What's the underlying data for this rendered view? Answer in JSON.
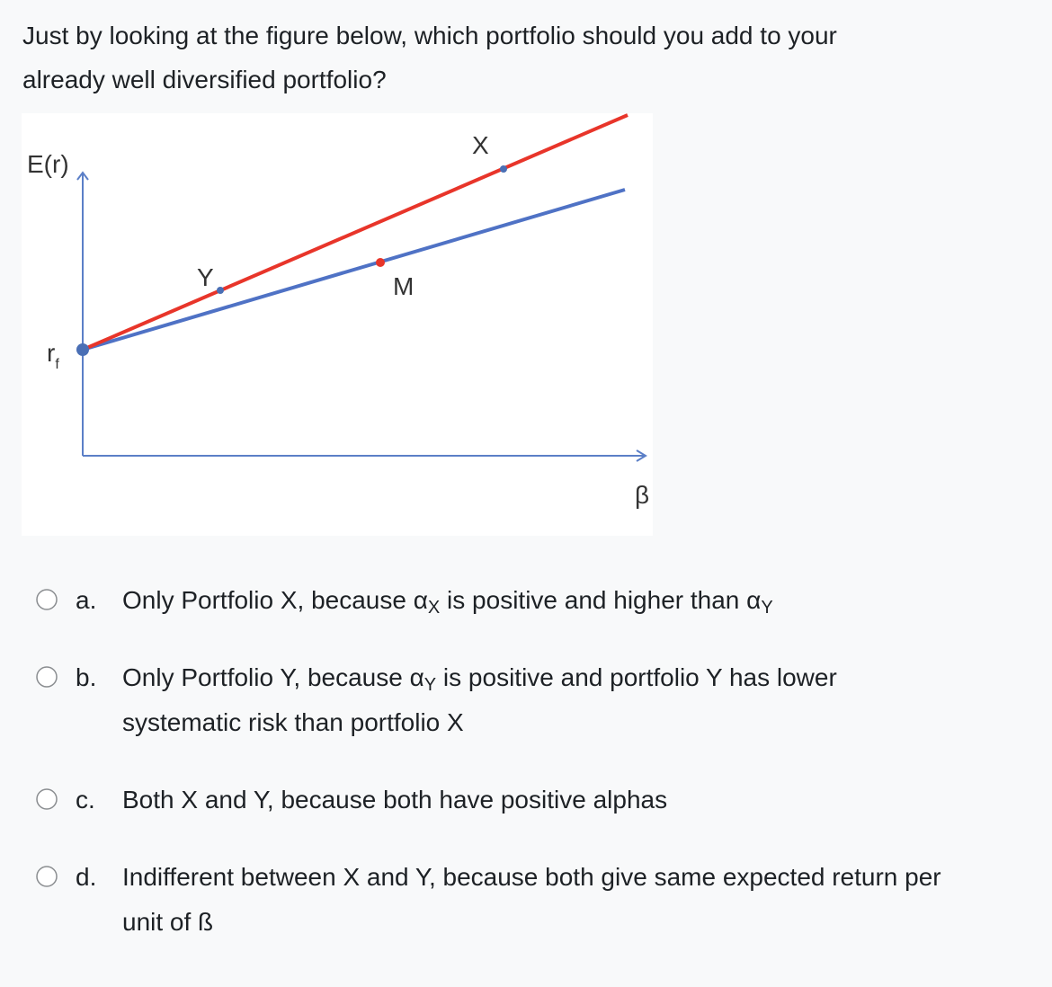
{
  "question": [
    "Just by looking at the figure below, which portfolio should you add to your",
    "already well diversified portfolio?"
  ],
  "figure": {
    "y_axis_label": "E(r)",
    "rf_label": "r",
    "rf_subscript": "f",
    "x_axis_label": "β",
    "point_labels": [
      "Y",
      "M",
      "X"
    ]
  },
  "options": [
    {
      "letter": "a.",
      "lines": [
        [
          {
            "text": "Only Portfolio X, because α",
            "sub": false
          },
          {
            "text": "X",
            "sub": true
          },
          {
            "text": " is positive and higher than α",
            "sub": false
          },
          {
            "text": "Y",
            "sub": true
          }
        ]
      ]
    },
    {
      "letter": "b.",
      "lines": [
        [
          {
            "text": "Only Portfolio Y, because α",
            "sub": false
          },
          {
            "text": "Y",
            "sub": true
          },
          {
            "text": " is positive and portfolio Y has lower",
            "sub": false
          }
        ],
        [
          {
            "text": "systematic risk than portfolio X",
            "sub": false
          }
        ]
      ]
    },
    {
      "letter": "c.",
      "lines": [
        [
          {
            "text": "Both X and Y, because both have positive alphas",
            "sub": false
          }
        ]
      ]
    },
    {
      "letter": "d.",
      "lines": [
        [
          {
            "text": "Indifferent between X and Y, because both give same expected return per",
            "sub": false
          }
        ],
        [
          {
            "text": "unit of ß",
            "sub": false
          }
        ]
      ]
    }
  ]
}
